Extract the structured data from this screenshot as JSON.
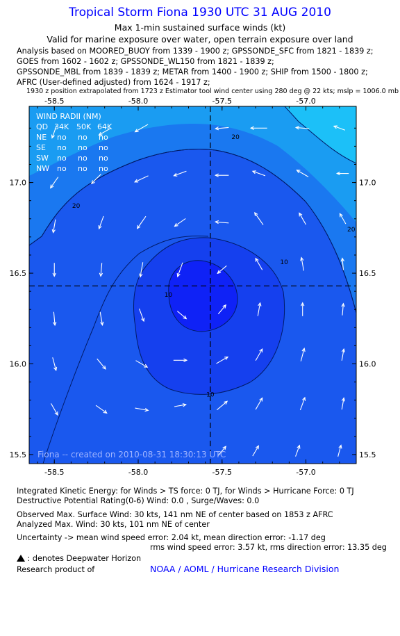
{
  "header": {
    "title": "Tropical Storm Fiona 1930 UTC 31 AUG 2010",
    "subtitle": "Max 1-min sustained surface winds (kt)",
    "validity": "Valid for marine exposure over water, open terrain exposure over land",
    "analysis_lines": [
      "Analysis based on MOORED_BUOY from 1339 - 1900 z; GPSSONDE_SFC from 1821 - 1839 z;",
      "GOES from 1602 - 1602 z; GPSSONDE_WL150 from 1821 - 1839 z;",
      "GPSSONDE_MBL from 1839 - 1839 z; METAR from 1400 - 1900 z; SHIP from 1500 - 1800 z;",
      "AFRC (User-defined adjusted) from 1624 - 1917 z;"
    ],
    "position_note": "1930 z position extrapolated from 1723 z Estimator tool wind center using 280 deg @ 22 kts; mslp = 1006.0 mb"
  },
  "wind_radii": {
    "title": "WIND RADII (NM)",
    "columns": [
      "QD",
      "34K",
      "50K",
      "64K"
    ],
    "rows": [
      [
        "NE",
        "no",
        "no",
        "no"
      ],
      [
        "SE",
        "no",
        "no",
        "no"
      ],
      [
        "SW",
        "no",
        "no",
        "no"
      ],
      [
        "NW",
        "no",
        "no",
        "no"
      ]
    ]
  },
  "created_label": "Fiona -- created on 2010-08-31 18:30:13 UTC",
  "chart_data": {
    "type": "heatmap",
    "description": "Filled contour map of max sustained surface wind speed (kt) with wind direction vectors",
    "xlim": [
      -58.65,
      -56.7
    ],
    "ylim": [
      15.45,
      17.42
    ],
    "x_ticks": [
      -58.5,
      -58.0,
      -57.5,
      -57.0
    ],
    "x_tick_labels": [
      "-58.5",
      "-58.0",
      "-57.5",
      "-57.0"
    ],
    "y_ticks": [
      15.5,
      16.0,
      16.5,
      17.0
    ],
    "y_tick_labels": [
      "15.5",
      "16.0",
      "16.5",
      "17.0"
    ],
    "center": {
      "lon": -57.57,
      "lat": 16.43
    },
    "contour_levels": [
      10,
      20,
      30
    ],
    "contour_labels": [
      {
        "text": "20",
        "lon": -57.42,
        "lat": 17.24
      },
      {
        "text": "20",
        "lon": -58.37,
        "lat": 16.86
      },
      {
        "text": "20",
        "lon": -56.73,
        "lat": 16.73
      },
      {
        "text": "10",
        "lon": -57.13,
        "lat": 16.55
      },
      {
        "text": "10",
        "lon": -57.82,
        "lat": 16.37
      },
      {
        "text": "10",
        "lon": -57.57,
        "lat": 15.82
      }
    ],
    "fill_colors": {
      "band_lt10": "#0f22f6",
      "band_10_15": "#1540ee",
      "band_15_20": "#1a58ee",
      "band_20_25": "#1a78f0",
      "band_25_30": "#1a9cf2",
      "band_gt30": "#1cc0f8"
    },
    "wind_vectors_note": "white arrows, direction in degrees (towards), length proportional to speed",
    "wind_vectors": [
      {
        "lon": -58.5,
        "lat": 17.28,
        "dir": 200,
        "spd": 0.6
      },
      {
        "lon": -58.2,
        "lat": 17.28,
        "dir": 240,
        "spd": 0.6
      },
      {
        "lon": -57.98,
        "lat": 17.3,
        "dir": 240,
        "spd": 0.7
      },
      {
        "lon": -57.5,
        "lat": 17.3,
        "dir": 265,
        "spd": 0.6
      },
      {
        "lon": -57.28,
        "lat": 17.3,
        "dir": 270,
        "spd": 0.8
      },
      {
        "lon": -57.02,
        "lat": 17.3,
        "dir": 275,
        "spd": 0.6
      },
      {
        "lon": -56.8,
        "lat": 17.3,
        "dir": 290,
        "spd": 0.5
      },
      {
        "lon": -58.5,
        "lat": 17.0,
        "dir": 215,
        "spd": 0.6
      },
      {
        "lon": -58.25,
        "lat": 17.02,
        "dir": 225,
        "spd": 0.6
      },
      {
        "lon": -57.98,
        "lat": 17.02,
        "dir": 245,
        "spd": 0.7
      },
      {
        "lon": -57.75,
        "lat": 17.05,
        "dir": 250,
        "spd": 0.6
      },
      {
        "lon": -57.5,
        "lat": 17.04,
        "dir": 270,
        "spd": 0.6
      },
      {
        "lon": -57.28,
        "lat": 17.05,
        "dir": 290,
        "spd": 0.6
      },
      {
        "lon": -57.02,
        "lat": 17.05,
        "dir": 300,
        "spd": 0.6
      },
      {
        "lon": -56.78,
        "lat": 17.05,
        "dir": 270,
        "spd": 0.5
      },
      {
        "lon": -58.5,
        "lat": 16.76,
        "dir": 190,
        "spd": 0.6
      },
      {
        "lon": -58.22,
        "lat": 16.78,
        "dir": 200,
        "spd": 0.6
      },
      {
        "lon": -57.98,
        "lat": 16.78,
        "dir": 215,
        "spd": 0.7
      },
      {
        "lon": -57.75,
        "lat": 16.78,
        "dir": 235,
        "spd": 0.6
      },
      {
        "lon": -57.5,
        "lat": 16.78,
        "dir": 275,
        "spd": 0.6
      },
      {
        "lon": -57.28,
        "lat": 16.8,
        "dir": 325,
        "spd": 0.7
      },
      {
        "lon": -57.02,
        "lat": 16.8,
        "dir": 330,
        "spd": 0.6
      },
      {
        "lon": -56.78,
        "lat": 16.8,
        "dir": 330,
        "spd": 0.5
      },
      {
        "lon": -58.5,
        "lat": 16.52,
        "dir": 180,
        "spd": 0.6
      },
      {
        "lon": -58.22,
        "lat": 16.52,
        "dir": 185,
        "spd": 0.6
      },
      {
        "lon": -57.98,
        "lat": 16.52,
        "dir": 190,
        "spd": 0.7
      },
      {
        "lon": -57.75,
        "lat": 16.52,
        "dir": 200,
        "spd": 0.7
      },
      {
        "lon": -57.5,
        "lat": 16.52,
        "dir": 230,
        "spd": 0.5
      },
      {
        "lon": -57.28,
        "lat": 16.55,
        "dir": 330,
        "spd": 0.6
      },
      {
        "lon": -57.02,
        "lat": 16.55,
        "dir": 350,
        "spd": 0.6
      },
      {
        "lon": -56.78,
        "lat": 16.55,
        "dir": 355,
        "spd": 0.5
      },
      {
        "lon": -58.5,
        "lat": 16.25,
        "dir": 175,
        "spd": 0.6
      },
      {
        "lon": -58.22,
        "lat": 16.25,
        "dir": 170,
        "spd": 0.6
      },
      {
        "lon": -57.98,
        "lat": 16.27,
        "dir": 160,
        "spd": 0.6
      },
      {
        "lon": -57.74,
        "lat": 16.27,
        "dir": 130,
        "spd": 0.5
      },
      {
        "lon": -57.5,
        "lat": 16.3,
        "dir": 40,
        "spd": 0.5
      },
      {
        "lon": -57.28,
        "lat": 16.3,
        "dir": 10,
        "spd": 0.6
      },
      {
        "lon": -57.02,
        "lat": 16.3,
        "dir": 0,
        "spd": 0.6
      },
      {
        "lon": -56.78,
        "lat": 16.3,
        "dir": 5,
        "spd": 0.5
      },
      {
        "lon": -58.5,
        "lat": 16.0,
        "dir": 165,
        "spd": 0.6
      },
      {
        "lon": -58.22,
        "lat": 16.0,
        "dir": 140,
        "spd": 0.6
      },
      {
        "lon": -57.98,
        "lat": 16.0,
        "dir": 120,
        "spd": 0.6
      },
      {
        "lon": -57.75,
        "lat": 16.02,
        "dir": 90,
        "spd": 0.6
      },
      {
        "lon": -57.5,
        "lat": 16.02,
        "dir": 60,
        "spd": 0.6
      },
      {
        "lon": -57.28,
        "lat": 16.05,
        "dir": 30,
        "spd": 0.6
      },
      {
        "lon": -57.02,
        "lat": 16.05,
        "dir": 15,
        "spd": 0.6
      },
      {
        "lon": -56.78,
        "lat": 16.05,
        "dir": 10,
        "spd": 0.5
      },
      {
        "lon": -58.5,
        "lat": 15.75,
        "dir": 150,
        "spd": 0.6
      },
      {
        "lon": -58.22,
        "lat": 15.75,
        "dir": 125,
        "spd": 0.6
      },
      {
        "lon": -57.98,
        "lat": 15.75,
        "dir": 100,
        "spd": 0.6
      },
      {
        "lon": -57.75,
        "lat": 15.77,
        "dir": 80,
        "spd": 0.5
      },
      {
        "lon": -57.5,
        "lat": 15.77,
        "dir": 50,
        "spd": 0.6
      },
      {
        "lon": -57.28,
        "lat": 15.78,
        "dir": 30,
        "spd": 0.6
      },
      {
        "lon": -57.02,
        "lat": 15.78,
        "dir": 20,
        "spd": 0.6
      },
      {
        "lon": -56.78,
        "lat": 15.78,
        "dir": 10,
        "spd": 0.5
      },
      {
        "lon": -57.5,
        "lat": 15.52,
        "dir": 40,
        "spd": 0.5
      },
      {
        "lon": -57.3,
        "lat": 15.52,
        "dir": 30,
        "spd": 0.5
      },
      {
        "lon": -57.05,
        "lat": 15.52,
        "dir": 20,
        "spd": 0.5
      },
      {
        "lon": -56.8,
        "lat": 15.52,
        "dir": 15,
        "spd": 0.5
      }
    ]
  },
  "footer": {
    "ike": "Integrated Kinetic Energy:  for Winds > TS force: 0 TJ,  for Winds > Hurricane Force: 0 TJ",
    "dpr": "Destructive Potential Rating(0-6)   Wind: 0.0 , Surge/Waves: 0.0",
    "obs_max": "Observed Max. Surface Wind: 30 kts, 141 nm NE of center based on 1853 z AFRC",
    "analyzed_max": "Analyzed Max. Wind: 30 kts, 101 nm NE of center",
    "uncertainty_1": "Uncertainty -> mean wind speed error: 2.04 kt,   mean direction error:  -1.17 deg",
    "uncertainty_2": "rms wind speed error: 3.57 kt,   rms direction error: 13.35 deg",
    "legend": " : denotes Deepwater Horizon",
    "research": "Research product of",
    "org": "NOAA / AOML / Hurricane Research Division"
  }
}
